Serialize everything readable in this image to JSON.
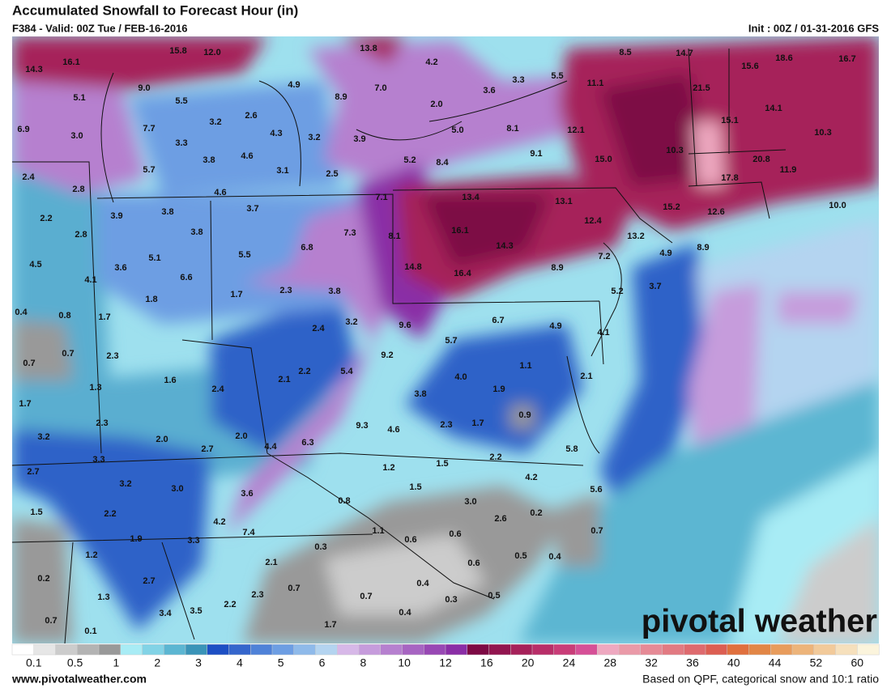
{
  "header": {
    "title": "Accumulated Snowfall to Forecast Hour (in)",
    "valid": "F384 - Valid: 00Z Tue / FEB-16-2016",
    "init": "Init : 00Z / 01-31-2016 GFS"
  },
  "map": {
    "labels": [
      "14.3",
      "16.1",
      "15.8",
      "12.0",
      "13.8",
      "4.2",
      "8.5",
      "14.7",
      "15.6",
      "18.6",
      "16.7",
      "9.0",
      "5.1",
      "5.5",
      "4.9",
      "8.9",
      "7.0",
      "2.0",
      "3.6",
      "3.3",
      "5.5",
      "11.1",
      "21.5",
      "14.1",
      "6.9",
      "3.0",
      "7.7",
      "3.2",
      "2.6",
      "4.3",
      "3.2",
      "3.9",
      "5.0",
      "8.1",
      "12.1",
      "15.1",
      "10.3",
      "3.3",
      "3.8",
      "4.6",
      "5.7",
      "3.1",
      "2.5",
      "5.2",
      "8.4",
      "9.1",
      "15.0",
      "10.3",
      "20.8",
      "11.9",
      "2.4",
      "2.8",
      "4.6",
      "3.7",
      "7.1",
      "13.4",
      "13.1",
      "17.8",
      "10.0",
      "2.2",
      "3.9",
      "3.8",
      "3.8",
      "7.3",
      "8.1",
      "16.1",
      "14.3",
      "12.4",
      "15.2",
      "12.6",
      "13.2",
      "2.8",
      "4.5",
      "3.6",
      "5.1",
      "6.6",
      "5.5",
      "6.8",
      "14.8",
      "16.4",
      "8.9",
      "7.2",
      "4.9",
      "8.9",
      "4.1",
      "1.8",
      "1.7",
      "2.3",
      "3.8",
      "5.2",
      "3.7",
      "0.4",
      "0.8",
      "1.7",
      "2.4",
      "3.2",
      "9.6",
      "6.7",
      "4.9",
      "4.1",
      "0.7",
      "0.7",
      "2.3",
      "5.7",
      "9.2",
      "1.6",
      "2.1",
      "2.2",
      "5.4",
      "4.0",
      "1.1",
      "2.1",
      "1.7",
      "1.3",
      "2.4",
      "3.8",
      "1.9",
      "2.3",
      "9.3",
      "4.6",
      "2.3",
      "1.7",
      "0.9",
      "3.2",
      "2.0",
      "2.7",
      "2.0",
      "4.4",
      "6.3",
      "3.3",
      "5.8",
      "2.7",
      "1.2",
      "1.5",
      "2.2",
      "3.2",
      "3.0",
      "3.6",
      "1.5",
      "4.2",
      "0.8",
      "3.0",
      "5.6",
      "1.5",
      "2.2",
      "4.2",
      "2.6",
      "0.2",
      "7.4",
      "1.1",
      "0.6",
      "0.6",
      "1.9",
      "3.3",
      "0.7",
      "1.2",
      "0.3",
      "2.1",
      "0.6",
      "0.5",
      "0.4",
      "0.2",
      "2.7",
      "0.4",
      "1.3",
      "2.3",
      "0.7",
      "0.7",
      "0.3",
      "0.5",
      "2.2",
      "3.4",
      "3.5",
      "0.4",
      "0.7",
      "0.1",
      "1.7"
    ]
  },
  "logo": "pivotal weather",
  "colorbar": {
    "labels": [
      "0.1",
      "0.5",
      "1",
      "2",
      "3",
      "4",
      "5",
      "6",
      "8",
      "10",
      "12",
      "16",
      "20",
      "24",
      "28",
      "32",
      "36",
      "40",
      "44",
      "52",
      "60"
    ],
    "colors": [
      "#ffffff",
      "#e6e6e6",
      "#cccccc",
      "#b3b3b3",
      "#999999",
      "#a8ecf5",
      "#82d3e6",
      "#5cb6d2",
      "#3a94b8",
      "#1d4fc4",
      "#3566cc",
      "#4f82d8",
      "#6d9ee3",
      "#8fbaea",
      "#b4d4f0",
      "#d7b8e8",
      "#c69cdc",
      "#b680cf",
      "#a765c2",
      "#9848b4",
      "#8a2ea6",
      "#7d0a44",
      "#92154f",
      "#a6215a",
      "#b82e68",
      "#c93d78",
      "#d65097",
      "#eea8c0",
      "#ea9aa8",
      "#e68a96",
      "#e27a82",
      "#de6a6e",
      "#dc5e52",
      "#e0703e",
      "#e28646",
      "#e89c5c",
      "#edb47a",
      "#f2ca9a",
      "#f6e0bc",
      "#fbf4dc"
    ]
  },
  "footer": {
    "site": "www.pivotalweather.com",
    "note": "Based on QPF, categorical snow and 10:1 ratio"
  }
}
